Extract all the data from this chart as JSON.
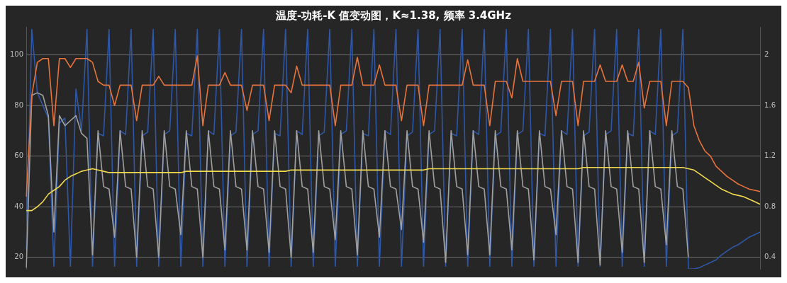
{
  "chart_data": {
    "type": "line",
    "title": "温度-功耗-K 值变动图，K≈1.38, 频率 3.4GHz",
    "categories": [
      null,
      null,
      null,
      null,
      null,
      null,
      null,
      null,
      null,
      null,
      null,
      null,
      null,
      null,
      null,
      null,
      null,
      null,
      null,
      null,
      null,
      null,
      null,
      null,
      null,
      null,
      null,
      null,
      null,
      null,
      null,
      null,
      null,
      null,
      null,
      null,
      null,
      null,
      null,
      null,
      null,
      null,
      null,
      null,
      null,
      null,
      null,
      null,
      null,
      null,
      null,
      null,
      null,
      null,
      null,
      null,
      null,
      null,
      null,
      null,
      null,
      null,
      null,
      null,
      null,
      null,
      null,
      null,
      null,
      null,
      null,
      null,
      null,
      null,
      null,
      null,
      null,
      null,
      null,
      null,
      null,
      null,
      null,
      null,
      null,
      null,
      null,
      null,
      null,
      null,
      null,
      null,
      null,
      null,
      null,
      null,
      null,
      null,
      null,
      null,
      null,
      null,
      null,
      null,
      null,
      null,
      null,
      null,
      null,
      null,
      null,
      null,
      null,
      null,
      null,
      null,
      null,
      null,
      null,
      null,
      null,
      null,
      null,
      null,
      null,
      null,
      null,
      null,
      null,
      null,
      null,
      null,
      null,
      null
    ],
    "ylim": [
      15.5,
      111
    ],
    "yticks": [
      20,
      40,
      60,
      80,
      100
    ],
    "y2lim": [
      0.31,
      2.22
    ],
    "y2ticks": [
      0.4,
      0.8,
      1.2,
      1.6,
      2
    ],
    "tick_labels": "y",
    "grid": "y",
    "legend": false,
    "series": [
      {
        "color": "#e8743b",
        "values": [
          44,
          84,
          97,
          98.5,
          98.5,
          72,
          98.5,
          98.5,
          95,
          98.5,
          98.5,
          98.5,
          97,
          89.5,
          88,
          88,
          80,
          88,
          88,
          88,
          74,
          88,
          88,
          88,
          91.5,
          88,
          88,
          88,
          88,
          88,
          88,
          99.5,
          72,
          88,
          88,
          88,
          93,
          88,
          88,
          88,
          78,
          88,
          88,
          88,
          74,
          88,
          88,
          88,
          85,
          95.5,
          88,
          88,
          88,
          88,
          88,
          88,
          72,
          88,
          88,
          88,
          99,
          88,
          88,
          88,
          96,
          88,
          88,
          88,
          74,
          88,
          88,
          88,
          72,
          88,
          88,
          88,
          88,
          88,
          88,
          88,
          98,
          88,
          88,
          88,
          72,
          89.5,
          89.5,
          89.5,
          83,
          98.5,
          89.5,
          89.5,
          89.5,
          89.5,
          89.5,
          89.5,
          76,
          89.5,
          89.5,
          89.5,
          72,
          89.5,
          89.5,
          89.5,
          96,
          89.5,
          89.5,
          89.5,
          96,
          89.5,
          89.5,
          97,
          79,
          89.5,
          89.5,
          89.5,
          72,
          89.5,
          89.5,
          89.5,
          87,
          72,
          66,
          62,
          60,
          56,
          54,
          52,
          50.5,
          49,
          48,
          47,
          46.5,
          46
        ]
      },
      {
        "color": "#f2d94e",
        "values": [
          38.5,
          38.5,
          40,
          42,
          45,
          46.5,
          48,
          50.5,
          52,
          53,
          54,
          54.5,
          55,
          54.5,
          54,
          53.5,
          53.5,
          53.5,
          53.5,
          53.5,
          53.5,
          53.5,
          53.5,
          53.5,
          53.5,
          53.5,
          53.5,
          53.5,
          53.5,
          54,
          54,
          54,
          54,
          54,
          54,
          54,
          54,
          54,
          54,
          54,
          54,
          54,
          54,
          54,
          54,
          54,
          54,
          54,
          54.5,
          54.5,
          54.5,
          54.5,
          54.5,
          54.5,
          54.5,
          54.5,
          54.5,
          54.5,
          54.5,
          54.5,
          54.5,
          54.5,
          54.5,
          54.5,
          54.5,
          54.5,
          54.5,
          54.5,
          54.5,
          54.5,
          54.5,
          54.5,
          54.5,
          55,
          55,
          55,
          55,
          55,
          55,
          55,
          55,
          55,
          55,
          55,
          55,
          55,
          55,
          55,
          55,
          55,
          55,
          55,
          55,
          55,
          55,
          55,
          55,
          55,
          55,
          55,
          55,
          55.5,
          55.5,
          55.5,
          55.5,
          55.5,
          55.5,
          55.5,
          55.5,
          55.5,
          55.5,
          55.5,
          55.5,
          55.5,
          55.5,
          55.5,
          55.5,
          55.5,
          55.5,
          55.5,
          55,
          54.5,
          53,
          51.5,
          50,
          48.5,
          47,
          46,
          45,
          44.5,
          44,
          43,
          42,
          41
        ]
      },
      {
        "color": "#a0a0a0",
        "values": [
          16,
          84,
          85,
          84,
          76,
          30,
          76,
          72,
          74,
          76,
          69,
          67,
          21,
          70,
          48,
          47,
          28,
          70,
          48,
          47,
          20,
          70,
          48,
          47,
          20,
          70,
          48,
          47,
          29,
          70,
          48,
          47,
          20,
          70,
          48,
          47,
          23,
          70,
          48,
          47,
          23,
          70,
          48,
          47,
          22,
          70,
          48,
          47,
          20,
          70,
          48,
          47,
          22,
          70,
          48,
          47,
          27,
          70,
          48,
          47,
          21,
          70,
          48,
          47,
          28,
          70,
          48,
          47,
          31,
          70,
          48,
          47,
          26,
          70,
          48,
          47,
          18,
          70,
          48,
          47,
          21,
          70,
          48,
          47,
          21,
          70,
          48,
          47,
          23,
          70,
          48,
          47,
          19,
          70,
          48,
          47,
          29,
          70,
          48,
          47,
          18,
          70,
          48,
          47,
          17,
          70,
          48,
          47,
          22,
          70,
          48,
          47,
          18,
          70,
          48,
          47,
          25,
          70,
          48,
          47,
          20,
          null,
          null,
          null,
          null,
          null,
          null,
          null,
          null,
          null,
          null,
          null,
          null,
          null
        ]
      },
      {
        "color": "#2f57a8",
        "axis": "y2",
        "values": [
          0.46,
          2.2,
          1.7,
          1.6,
          1.5,
          0.33,
          1.46,
          1.5,
          0.33,
          1.73,
          1.4,
          2.2,
          0.33,
          1.38,
          1.36,
          2.2,
          0.33,
          1.4,
          1.37,
          2.2,
          0.33,
          1.36,
          1.39,
          2.2,
          0.33,
          1.37,
          1.4,
          2.2,
          0.33,
          1.38,
          1.36,
          2.2,
          0.33,
          1.4,
          1.37,
          2.2,
          0.33,
          1.36,
          1.39,
          2.2,
          0.33,
          1.37,
          1.4,
          2.2,
          0.33,
          1.38,
          1.36,
          2.2,
          0.33,
          1.4,
          1.37,
          2.2,
          0.33,
          1.36,
          1.39,
          2.2,
          0.33,
          1.37,
          1.4,
          2.2,
          0.33,
          1.38,
          1.36,
          2.2,
          0.33,
          1.4,
          1.37,
          2.2,
          0.33,
          1.36,
          1.39,
          2.2,
          0.33,
          1.37,
          1.4,
          2.2,
          0.33,
          1.38,
          1.36,
          2.2,
          0.33,
          1.4,
          1.37,
          2.2,
          0.33,
          1.36,
          1.39,
          2.2,
          0.33,
          1.37,
          1.4,
          2.2,
          0.33,
          1.38,
          1.36,
          2.2,
          0.33,
          1.4,
          1.37,
          2.2,
          0.33,
          1.36,
          1.39,
          2.2,
          0.33,
          1.37,
          1.4,
          2.2,
          0.33,
          1.38,
          1.36,
          2.2,
          0.33,
          1.4,
          1.37,
          2.2,
          0.33,
          1.36,
          1.39,
          2.2,
          0.31,
          0.31,
          0.32,
          0.34,
          0.36,
          0.38,
          0.42,
          0.45,
          0.48,
          0.5,
          0.53,
          0.56,
          0.58,
          0.6
        ]
      }
    ]
  }
}
